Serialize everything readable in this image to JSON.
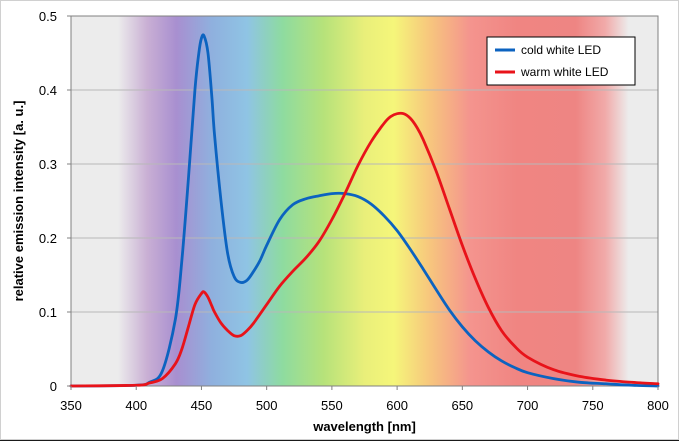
{
  "chart_data": {
    "type": "line",
    "title": "",
    "xlabel": "wavelength [nm]",
    "ylabel": "relative emission intensity [a. u.]",
    "xlim": [
      350,
      800
    ],
    "ylim": [
      0,
      0.5
    ],
    "xticks": [
      "350",
      "400",
      "450",
      "500",
      "550",
      "600",
      "650",
      "700",
      "750",
      "800"
    ],
    "yticks": [
      "0",
      "0.1",
      "0.2",
      "0.3",
      "0.4",
      "0.5"
    ],
    "legend_position": "top-right",
    "background": "visible-spectrum gradient (approx. 380-780 nm)",
    "series": [
      {
        "name": "cold white LED",
        "color": "#0c63c0",
        "x": [
          350,
          400,
          410,
          420,
          430,
          435,
          440,
          445,
          448,
          450,
          452,
          455,
          458,
          460,
          465,
          470,
          475,
          480,
          485,
          490,
          495,
          500,
          510,
          520,
          530,
          540,
          550,
          560,
          570,
          580,
          590,
          600,
          610,
          620,
          630,
          640,
          650,
          660,
          670,
          680,
          690,
          700,
          720,
          740,
          760,
          780,
          800
        ],
        "y": [
          0,
          0.001,
          0.005,
          0.02,
          0.09,
          0.17,
          0.28,
          0.4,
          0.45,
          0.47,
          0.473,
          0.45,
          0.39,
          0.34,
          0.25,
          0.18,
          0.148,
          0.14,
          0.143,
          0.155,
          0.17,
          0.19,
          0.225,
          0.245,
          0.253,
          0.257,
          0.26,
          0.26,
          0.256,
          0.246,
          0.23,
          0.21,
          0.185,
          0.158,
          0.13,
          0.103,
          0.08,
          0.061,
          0.046,
          0.034,
          0.025,
          0.018,
          0.01,
          0.005,
          0.003,
          0.001,
          0.0
        ]
      },
      {
        "name": "warm white LED",
        "color": "#e8131a",
        "x": [
          350,
          400,
          410,
          420,
          430,
          435,
          440,
          445,
          450,
          452,
          455,
          458,
          460,
          465,
          470,
          475,
          480,
          485,
          490,
          500,
          510,
          520,
          530,
          540,
          550,
          560,
          570,
          580,
          590,
          595,
          600,
          605,
          610,
          615,
          620,
          630,
          640,
          650,
          660,
          670,
          680,
          690,
          700,
          720,
          740,
          760,
          780,
          800
        ],
        "y": [
          0,
          0.001,
          0.004,
          0.01,
          0.03,
          0.05,
          0.08,
          0.11,
          0.125,
          0.127,
          0.12,
          0.108,
          0.1,
          0.085,
          0.075,
          0.068,
          0.068,
          0.075,
          0.085,
          0.11,
          0.135,
          0.155,
          0.173,
          0.195,
          0.225,
          0.26,
          0.298,
          0.33,
          0.355,
          0.364,
          0.368,
          0.368,
          0.362,
          0.35,
          0.333,
          0.29,
          0.24,
          0.19,
          0.145,
          0.106,
          0.075,
          0.054,
          0.039,
          0.022,
          0.013,
          0.008,
          0.005,
          0.003
        ]
      }
    ]
  }
}
